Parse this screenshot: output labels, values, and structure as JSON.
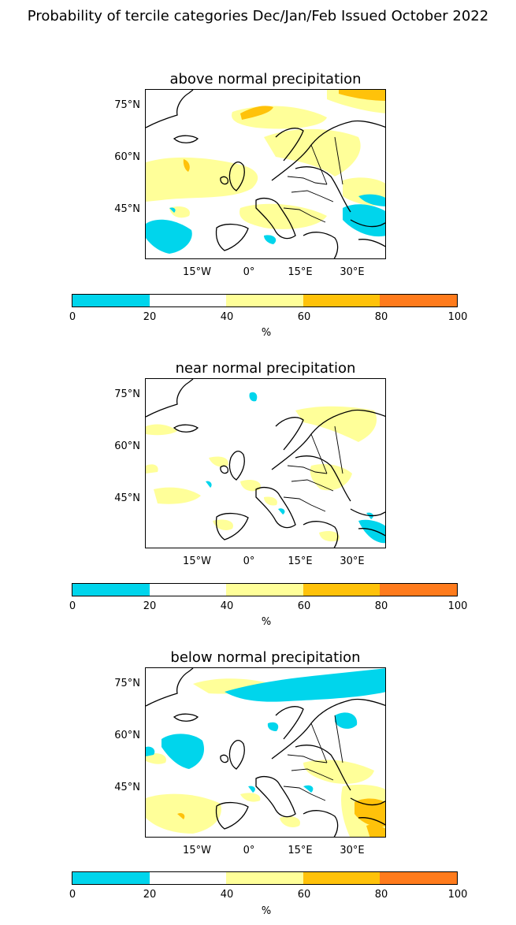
{
  "title": "Probability of tercile categories Dec/Jan/Feb Issued October 2022",
  "panels": [
    {
      "title": "above normal precipitation"
    },
    {
      "title": "near normal precipitation"
    },
    {
      "title": "below normal precipitation"
    }
  ],
  "lat_labels": [
    "75°N",
    "60°N",
    "45°N"
  ],
  "lon_labels": [
    "15°W",
    "0°",
    "15°E",
    "30°E"
  ],
  "colorbar": {
    "ticks": [
      "0",
      "20",
      "40",
      "60",
      "80",
      "100"
    ],
    "unit": "%",
    "colors": [
      "#00d5ec",
      "#ffffff",
      "#ffff99",
      "#ffc20a",
      "#ff7b1c"
    ]
  }
}
